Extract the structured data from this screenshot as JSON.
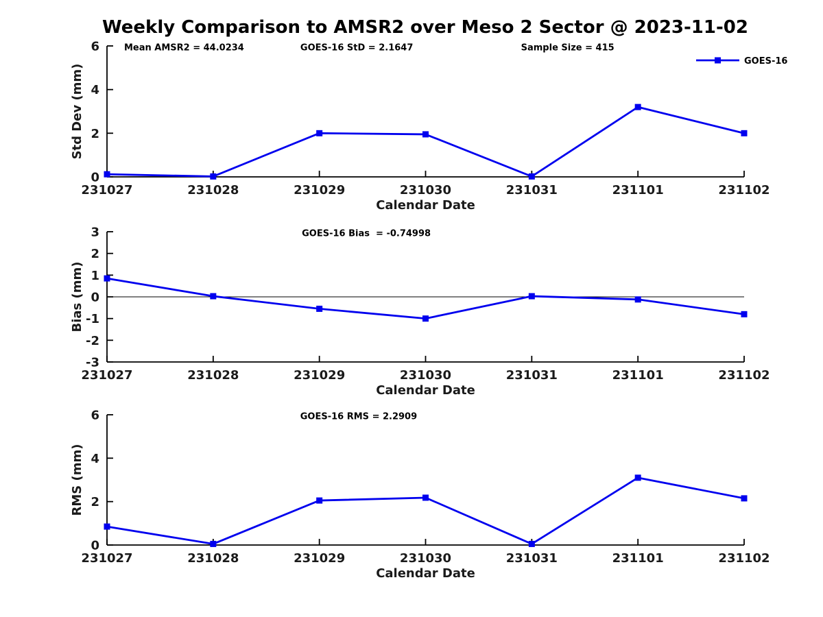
{
  "title": "Weekly Comparison to AMSR2 over Meso 2 Sector @ 2023-11-02",
  "colors": {
    "line": "#0000EE",
    "axis": "#000000",
    "text": "#000000"
  },
  "chart_data": [
    {
      "type": "line",
      "panel": "std-dev",
      "categories": [
        "231027",
        "231028",
        "231029",
        "231030",
        "231031",
        "231101",
        "231102"
      ],
      "series": [
        {
          "name": "GOES-16",
          "values": [
            0.12,
            0.02,
            2.0,
            1.95,
            0.02,
            3.2,
            2.0
          ]
        }
      ],
      "xlabel": "Calendar Date",
      "ylabel": "Std Dev (mm)",
      "ylim": [
        0,
        6
      ],
      "yticks": [
        0,
        2,
        4,
        6
      ],
      "grid": false,
      "zero_line": false,
      "annotations": [
        "Mean AMSR2 = 44.0234",
        "GOES-16 StD = 2.1647",
        "Sample Size = 415"
      ],
      "legend": {
        "visible": true,
        "position": "top-right",
        "entries": [
          "GOES-16"
        ]
      }
    },
    {
      "type": "line",
      "panel": "bias",
      "categories": [
        "231027",
        "231028",
        "231029",
        "231030",
        "231031",
        "231101",
        "231102"
      ],
      "series": [
        {
          "name": "GOES-16",
          "values": [
            0.85,
            0.03,
            -0.55,
            -1.0,
            0.03,
            -0.12,
            -0.8
          ]
        }
      ],
      "xlabel": "Calendar Date",
      "ylabel": "Bias (mm)",
      "ylim": [
        -3,
        3
      ],
      "yticks": [
        -3,
        -2,
        -1,
        0,
        1,
        2,
        3
      ],
      "grid": false,
      "zero_line": true,
      "annotations": [
        "GOES-16 Bias  = -0.74998"
      ],
      "legend": {
        "visible": false
      }
    },
    {
      "type": "line",
      "panel": "rms",
      "categories": [
        "231027",
        "231028",
        "231029",
        "231030",
        "231031",
        "231101",
        "231102"
      ],
      "series": [
        {
          "name": "GOES-16",
          "values": [
            0.85,
            0.05,
            2.05,
            2.18,
            0.05,
            3.1,
            2.15
          ]
        }
      ],
      "xlabel": "Calendar Date",
      "ylabel": "RMS (mm)",
      "ylim": [
        0,
        6
      ],
      "yticks": [
        0,
        2,
        4,
        6
      ],
      "grid": false,
      "zero_line": false,
      "annotations": [
        "GOES-16 RMS = 2.2909"
      ],
      "legend": {
        "visible": false
      }
    }
  ]
}
